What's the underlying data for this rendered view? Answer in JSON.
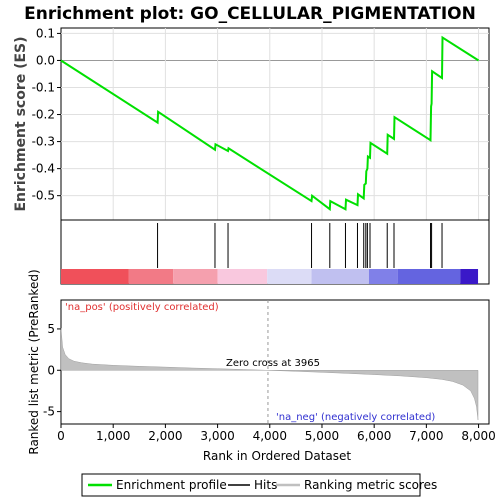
{
  "chart_data": {
    "type": "line",
    "title": "Enrichment plot: GO_CELLULAR_PIGMENTATION",
    "top_panel": {
      "ylabel": "Enrichment score (ES)",
      "ylim": [
        -0.59,
        0.12
      ],
      "yticks": [
        0.1,
        0.0,
        -0.1,
        -0.2,
        -0.3,
        -0.4,
        -0.5
      ],
      "ytick_labels": [
        "0.1",
        "0.0",
        "-0.1",
        "-0.2",
        "-0.3",
        "-0.4",
        "-0.5"
      ],
      "series": [
        {
          "name": "Enrichment profile",
          "x": [
            0,
            1850,
            1860,
            2950,
            2960,
            3200,
            3210,
            4800,
            4810,
            5150,
            5160,
            5450,
            5460,
            5680,
            5690,
            5800,
            5810,
            5840,
            5850,
            5870,
            5880,
            5920,
            5930,
            6250,
            6260,
            6380,
            6390,
            7080,
            7090,
            7100,
            7110,
            7300,
            7310,
            8000
          ],
          "y": [
            0.0,
            -0.23,
            -0.19,
            -0.33,
            -0.31,
            -0.335,
            -0.325,
            -0.52,
            -0.5,
            -0.55,
            -0.52,
            -0.55,
            -0.515,
            -0.535,
            -0.495,
            -0.51,
            -0.46,
            -0.455,
            -0.41,
            -0.4,
            -0.355,
            -0.36,
            -0.305,
            -0.345,
            -0.275,
            -0.29,
            -0.21,
            -0.295,
            -0.17,
            -0.16,
            -0.04,
            -0.065,
            0.085,
            0.0
          ]
        }
      ]
    },
    "hits_panel": {
      "hit_positions": [
        1850,
        2950,
        3200,
        4800,
        5150,
        5450,
        5680,
        5800,
        5840,
        5870,
        5920,
        6250,
        6380,
        7080,
        7100,
        7300
      ]
    },
    "ranked_panel": {
      "ylabel": "Ranked list metric (PreRanked)",
      "xlabel": "Rank in Ordered Dataset",
      "ylim": [
        -6.5,
        8.5
      ],
      "yticks": [
        5,
        0,
        -5
      ],
      "ytick_labels": [
        "5",
        "0",
        "-5"
      ],
      "xlim": [
        0,
        8200
      ],
      "xticks": [
        0,
        1000,
        2000,
        3000,
        4000,
        5000,
        6000,
        7000,
        8000
      ],
      "xtick_labels": [
        "0",
        "1,000",
        "2,000",
        "3,000",
        "4,000",
        "5,000",
        "6,000",
        "7,000",
        "8,000"
      ],
      "metric_curve": {
        "x": [
          0,
          30,
          80,
          150,
          250,
          400,
          600,
          1000,
          1500,
          2000,
          2500,
          3000,
          3500,
          3965,
          4500,
          5000,
          5500,
          6000,
          6500,
          7000,
          7300,
          7500,
          7700,
          7850,
          7920,
          7960,
          7990
        ],
        "y": [
          5.1,
          2.8,
          1.9,
          1.4,
          1.1,
          0.9,
          0.75,
          0.6,
          0.48,
          0.38,
          0.28,
          0.19,
          0.09,
          0.0,
          -0.12,
          -0.25,
          -0.38,
          -0.52,
          -0.68,
          -0.9,
          -1.1,
          -1.35,
          -1.8,
          -2.5,
          -3.4,
          -4.4,
          -6.0
        ]
      },
      "zero_cross_label": "Zero cross at 3965",
      "zero_cross_x": 3965,
      "pos_label": "'na_pos' (positively correlated)",
      "neg_label": "'na_neg' (negatively correlated)"
    },
    "heat_bar": {
      "segments": [
        {
          "start": 0,
          "end": 1300,
          "color": "#f0505a"
        },
        {
          "start": 1300,
          "end": 2150,
          "color": "#f27a86"
        },
        {
          "start": 2150,
          "end": 3000,
          "color": "#f5a0ae"
        },
        {
          "start": 3000,
          "end": 3950,
          "color": "#f9c8de"
        },
        {
          "start": 3950,
          "end": 4800,
          "color": "#dcdcf6"
        },
        {
          "start": 4800,
          "end": 5900,
          "color": "#c0c0f0"
        },
        {
          "start": 5900,
          "end": 6450,
          "color": "#8080e8"
        },
        {
          "start": 6450,
          "end": 7650,
          "color": "#6464e0"
        },
        {
          "start": 7650,
          "end": 7990,
          "color": "#3a18c8"
        }
      ]
    },
    "legend": {
      "entries": [
        {
          "label": "Enrichment profile",
          "color": "#00e000"
        },
        {
          "label": "Hits",
          "color": "#000000"
        },
        {
          "label": "Ranking metric scores",
          "color": "#c0c0c0"
        }
      ]
    },
    "colors": {
      "profile": "#00e000",
      "hit": "#000000",
      "metric_fill": "#c0c0c0",
      "pos_label": "#e03030",
      "neg_label": "#3030d0",
      "zero_line": "#999999"
    }
  }
}
